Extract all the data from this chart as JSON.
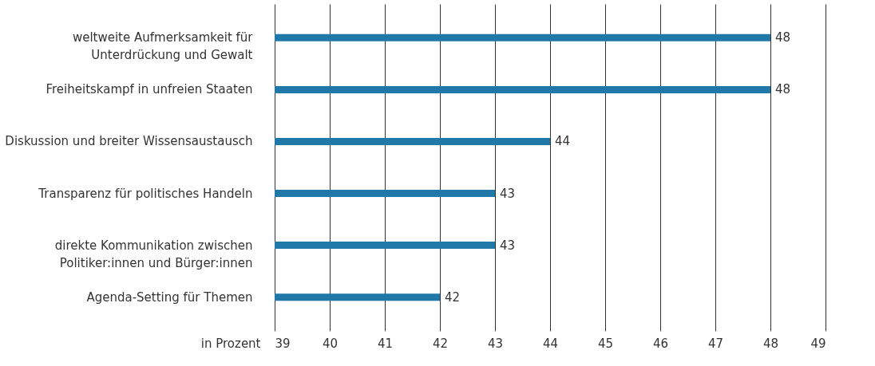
{
  "chart_data": {
    "type": "bar",
    "orientation": "horizontal",
    "xlabel": "in Prozent",
    "categories": [
      "weltweite Aufmerksamkeit für Unterdrückung und Gewalt",
      "Freiheitskampf in unfreien Staaten",
      "Diskussion und breiter Wissensaustausch",
      "Transparenz für politisches Handeln",
      "direkte Kommunikation zwischen Politiker:innen und Bürger:innen",
      "Agenda-Setting für Themen"
    ],
    "values": [
      48,
      48,
      44,
      43,
      43,
      42
    ],
    "color": "#1f78a8",
    "xlim": [
      39,
      49
    ],
    "xticks": [
      39,
      40,
      41,
      42,
      43,
      44,
      45,
      46,
      47,
      48,
      49
    ],
    "grid": "x",
    "data_labels": true
  }
}
